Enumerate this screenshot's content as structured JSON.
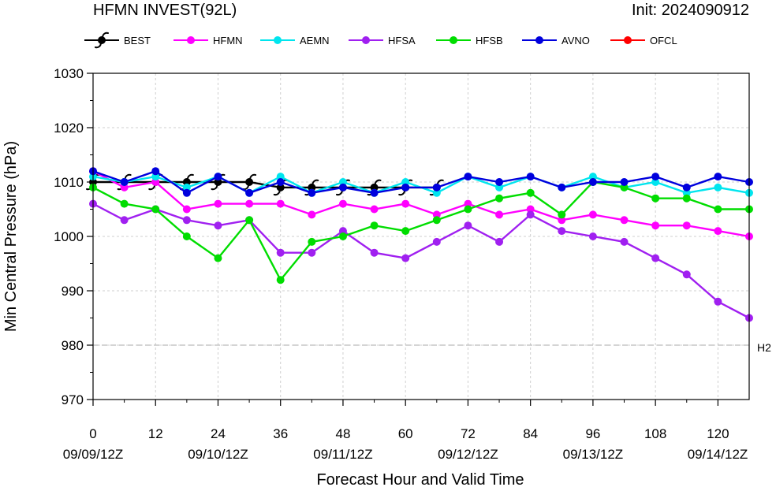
{
  "header": {
    "title": "HFMN INVEST(92L)",
    "init": "Init: 2024090912"
  },
  "colors": {
    "BEST": "#000000",
    "HFMN": "#ff00ff",
    "AEMN": "#00e5ee",
    "HFSA": "#a020f0",
    "HFSB": "#00dd00",
    "AVNO": "#0000dd",
    "OFCL": "#ff0000"
  },
  "chart_data": {
    "type": "line",
    "title": "HFMN INVEST(92L)",
    "xlabel": "Forecast Hour and Valid Time",
    "ylabel": "Min Central Pressure (hPa)",
    "xlim": [
      0,
      126
    ],
    "ylim": [
      970,
      1030
    ],
    "x_ticks": [
      0,
      12,
      24,
      36,
      48,
      60,
      72,
      84,
      96,
      108,
      120
    ],
    "x_date_labels": [
      {
        "hour": 0,
        "label": "09/09/12Z"
      },
      {
        "hour": 24,
        "label": "09/10/12Z"
      },
      {
        "hour": 48,
        "label": "09/11/12Z"
      },
      {
        "hour": 72,
        "label": "09/12/12Z"
      },
      {
        "hour": 96,
        "label": "09/13/12Z"
      },
      {
        "hour": 120,
        "label": "09/14/12Z"
      }
    ],
    "y_ticks": [
      970,
      980,
      990,
      1000,
      1010,
      1020,
      1030
    ],
    "grid": true,
    "legend_position": "top",
    "reference_lines": [
      {
        "y": 980,
        "label": "H2"
      }
    ],
    "series": [
      {
        "name": "BEST",
        "x": [
          0,
          6,
          12,
          18,
          24,
          30,
          36,
          42,
          48,
          54,
          60,
          66
        ],
        "y": [
          1010,
          1010,
          1010,
          1010,
          1010,
          1010,
          1009,
          1009,
          1009,
          1009,
          1009,
          1009
        ]
      },
      {
        "name": "HFMN",
        "x": [
          0,
          6,
          12,
          18,
          24,
          30,
          36,
          42,
          48,
          54,
          60,
          66,
          72,
          78,
          84,
          90,
          96,
          102,
          108,
          114,
          120,
          126
        ],
        "y": [
          1012,
          1009,
          1010,
          1005,
          1006,
          1006,
          1006,
          1004,
          1006,
          1005,
          1006,
          1004,
          1006,
          1004,
          1005,
          1003,
          1004,
          1003,
          1002,
          1002,
          1001,
          1000
        ]
      },
      {
        "name": "AEMN",
        "x": [
          0,
          6,
          12,
          18,
          24,
          30,
          36,
          42,
          48,
          54,
          60,
          66,
          72,
          78,
          84,
          90,
          96,
          102,
          108,
          114,
          120,
          126
        ],
        "y": [
          1011,
          1010,
          1011,
          1009,
          1011,
          1008,
          1011,
          1008,
          1010,
          1008,
          1010,
          1008,
          1011,
          1009,
          1011,
          1009,
          1011,
          1009,
          1010,
          1008,
          1009,
          1008
        ]
      },
      {
        "name": "HFSA",
        "x": [
          0,
          6,
          12,
          18,
          24,
          30,
          36,
          42,
          48,
          54,
          60,
          66,
          72,
          78,
          84,
          90,
          96,
          102,
          108,
          114,
          120,
          126
        ],
        "y": [
          1006,
          1003,
          1005,
          1003,
          1002,
          1003,
          997,
          997,
          1001,
          997,
          996,
          999,
          1002,
          999,
          1004,
          1001,
          1000,
          999,
          996,
          993,
          988,
          985
        ]
      },
      {
        "name": "HFSB",
        "x": [
          0,
          6,
          12,
          18,
          24,
          30,
          36,
          42,
          48,
          54,
          60,
          66,
          72,
          78,
          84,
          90,
          96,
          102,
          108,
          114,
          120,
          126
        ],
        "y": [
          1009,
          1006,
          1005,
          1000,
          996,
          1003,
          992,
          999,
          1000,
          1002,
          1001,
          1003,
          1005,
          1007,
          1008,
          1004,
          1010,
          1009,
          1007,
          1007,
          1005,
          1005
        ]
      },
      {
        "name": "AVNO",
        "x": [
          0,
          6,
          12,
          18,
          24,
          30,
          36,
          42,
          48,
          54,
          60,
          66,
          72,
          78,
          84,
          90,
          96,
          102,
          108,
          114,
          120,
          126
        ],
        "y": [
          1012,
          1010,
          1012,
          1008,
          1011,
          1008,
          1010,
          1008,
          1009,
          1008,
          1009,
          1009,
          1011,
          1010,
          1011,
          1009,
          1010,
          1010,
          1011,
          1009,
          1011,
          1010
        ]
      },
      {
        "name": "OFCL",
        "x": [],
        "y": []
      }
    ]
  }
}
